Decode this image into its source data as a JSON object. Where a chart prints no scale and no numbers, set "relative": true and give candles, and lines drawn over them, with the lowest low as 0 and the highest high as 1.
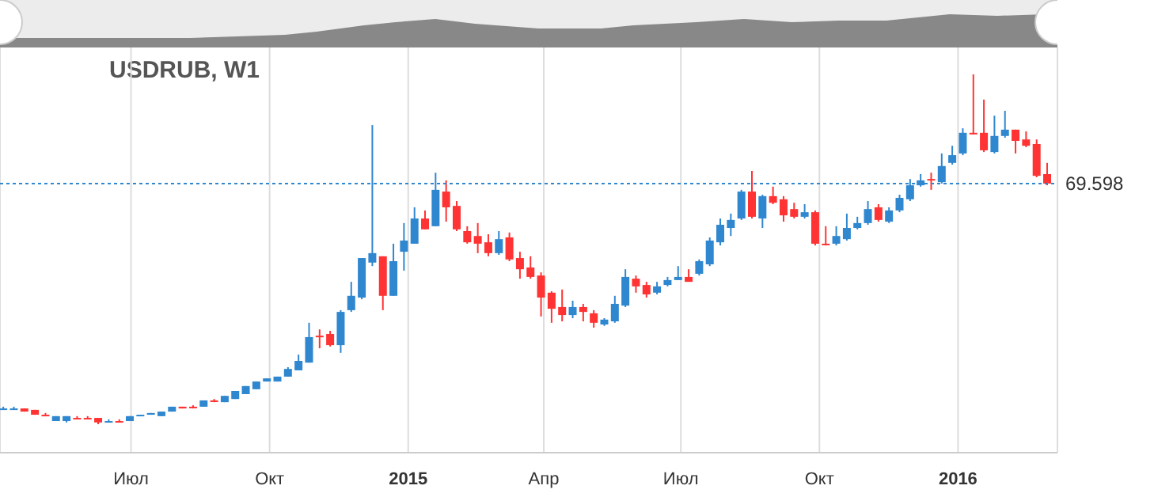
{
  "chart_data": {
    "type": "candlestick",
    "title": "USDRUB, W1",
    "relative": true,
    "grid": "x",
    "x": [
      "2014-04-07",
      "2014-04-14",
      "2014-04-21",
      "2014-04-28",
      "2014-05-05",
      "2014-05-12",
      "2014-05-19",
      "2014-05-26",
      "2014-06-02",
      "2014-06-09",
      "2014-06-16",
      "2014-06-23",
      "2014-06-30",
      "2014-07-07",
      "2014-07-14",
      "2014-07-21",
      "2014-07-28",
      "2014-08-04",
      "2014-08-11",
      "2014-08-18",
      "2014-08-25",
      "2014-09-01",
      "2014-09-08",
      "2014-09-15",
      "2014-09-22",
      "2014-09-29",
      "2014-10-06",
      "2014-10-13",
      "2014-10-20",
      "2014-10-27",
      "2014-11-03",
      "2014-11-10",
      "2014-11-17",
      "2014-11-24",
      "2014-12-01",
      "2014-12-08",
      "2014-12-15",
      "2014-12-22",
      "2014-12-29",
      "2015-01-05",
      "2015-01-12",
      "2015-01-19",
      "2015-01-26",
      "2015-02-02",
      "2015-02-09",
      "2015-02-16",
      "2015-02-23",
      "2015-03-02",
      "2015-03-09",
      "2015-03-16",
      "2015-03-23",
      "2015-03-30",
      "2015-04-06",
      "2015-04-13",
      "2015-04-20",
      "2015-04-27",
      "2015-05-04",
      "2015-05-11",
      "2015-05-18",
      "2015-05-25",
      "2015-06-01",
      "2015-06-08",
      "2015-06-15",
      "2015-06-22",
      "2015-06-29",
      "2015-07-06",
      "2015-07-13",
      "2015-07-20",
      "2015-07-27",
      "2015-08-03",
      "2015-08-10",
      "2015-08-17",
      "2015-08-24",
      "2015-08-31",
      "2015-09-07",
      "2015-09-14",
      "2015-09-21",
      "2015-09-28",
      "2015-10-05",
      "2015-10-12",
      "2015-10-19",
      "2015-10-26",
      "2015-11-02",
      "2015-11-09",
      "2015-11-16",
      "2015-11-23",
      "2015-11-30",
      "2015-12-07",
      "2015-12-14",
      "2015-12-21",
      "2015-12-28",
      "2016-01-04",
      "2016-01-11",
      "2016-01-18",
      "2016-01-25",
      "2016-02-01",
      "2016-02-08",
      "2016-02-15",
      "2016-02-22",
      "2016-02-29"
    ],
    "ohlc": [
      [
        0.045,
        0.05,
        0.041,
        0.045
      ],
      [
        0.045,
        0.05,
        0.041,
        0.045
      ],
      [
        0.045,
        0.045,
        0.036,
        0.036
      ],
      [
        0.041,
        0.041,
        0.027,
        0.027
      ],
      [
        0.027,
        0.032,
        0.023,
        0.027
      ],
      [
        0.009,
        0.023,
        0.009,
        0.023
      ],
      [
        0.009,
        0.023,
        0.005,
        0.023
      ],
      [
        0.018,
        0.023,
        0.014,
        0.018
      ],
      [
        0.018,
        0.023,
        0.014,
        0.018
      ],
      [
        0.018,
        0.018,
        0,
        0.005
      ],
      [
        0.009,
        0.014,
        0.005,
        0.009
      ],
      [
        0.009,
        0.014,
        0.005,
        0.009
      ],
      [
        0.009,
        0.023,
        0.009,
        0.023
      ],
      [
        0.023,
        0.027,
        0.023,
        0.027
      ],
      [
        0.027,
        0.032,
        0.027,
        0.032
      ],
      [
        0.023,
        0.036,
        0.023,
        0.036
      ],
      [
        0.036,
        0.05,
        0.036,
        0.05
      ],
      [
        0.05,
        0.05,
        0.045,
        0.045
      ],
      [
        0.05,
        0.054,
        0.045,
        0.05
      ],
      [
        0.05,
        0.068,
        0.05,
        0.068
      ],
      [
        0.068,
        0.072,
        0.063,
        0.068
      ],
      [
        0.063,
        0.081,
        0.063,
        0.081
      ],
      [
        0.072,
        0.095,
        0.072,
        0.095
      ],
      [
        0.086,
        0.109,
        0.086,
        0.109
      ],
      [
        0.1,
        0.122,
        0.1,
        0.122
      ],
      [
        0.122,
        0.131,
        0.122,
        0.131
      ],
      [
        0.122,
        0.136,
        0.122,
        0.136
      ],
      [
        0.136,
        0.163,
        0.136,
        0.158
      ],
      [
        0.154,
        0.199,
        0.154,
        0.181
      ],
      [
        0.176,
        0.29,
        0.176,
        0.249
      ],
      [
        0.253,
        0.271,
        0.217,
        0.249
      ],
      [
        0.258,
        0.267,
        0.222,
        0.226
      ],
      [
        0.226,
        0.326,
        0.204,
        0.321
      ],
      [
        0.326,
        0.407,
        0.321,
        0.367
      ],
      [
        0.362,
        0.475,
        0.357,
        0.475
      ],
      [
        0.462,
        0.855,
        0.452,
        0.489
      ],
      [
        0.48,
        0.48,
        0.326,
        0.367
      ],
      [
        0.367,
        0.516,
        0.367,
        0.466
      ],
      [
        0.493,
        0.575,
        0.439,
        0.525
      ],
      [
        0.516,
        0.62,
        0.516,
        0.588
      ],
      [
        0.588,
        0.611,
        0.557,
        0.557
      ],
      [
        0.566,
        0.719,
        0.566,
        0.67
      ],
      [
        0.665,
        0.697,
        0.579,
        0.62
      ],
      [
        0.624,
        0.638,
        0.552,
        0.557
      ],
      [
        0.552,
        0.566,
        0.516,
        0.52
      ],
      [
        0.538,
        0.575,
        0.489,
        0.516
      ],
      [
        0.52,
        0.543,
        0.48,
        0.489
      ],
      [
        0.489,
        0.552,
        0.484,
        0.529
      ],
      [
        0.534,
        0.548,
        0.466,
        0.471
      ],
      [
        0.475,
        0.493,
        0.416,
        0.443
      ],
      [
        0.448,
        0.48,
        0.416,
        0.421
      ],
      [
        0.425,
        0.434,
        0.308,
        0.362
      ],
      [
        0.376,
        0.38,
        0.29,
        0.33
      ],
      [
        0.335,
        0.385,
        0.294,
        0.312
      ],
      [
        0.312,
        0.353,
        0.303,
        0.335
      ],
      [
        0.335,
        0.344,
        0.294,
        0.321
      ],
      [
        0.317,
        0.326,
        0.276,
        0.29
      ],
      [
        0.285,
        0.303,
        0.281,
        0.299
      ],
      [
        0.294,
        0.367,
        0.29,
        0.344
      ],
      [
        0.339,
        0.443,
        0.335,
        0.421
      ],
      [
        0.416,
        0.425,
        0.376,
        0.394
      ],
      [
        0.398,
        0.407,
        0.362,
        0.371
      ],
      [
        0.376,
        0.407,
        0.371,
        0.394
      ],
      [
        0.398,
        0.421,
        0.394,
        0.412
      ],
      [
        0.412,
        0.452,
        0.412,
        0.421
      ],
      [
        0.421,
        0.443,
        0.407,
        0.407
      ],
      [
        0.43,
        0.471,
        0.425,
        0.466
      ],
      [
        0.457,
        0.534,
        0.452,
        0.525
      ],
      [
        0.52,
        0.588,
        0.511,
        0.57
      ],
      [
        0.561,
        0.602,
        0.538,
        0.584
      ],
      [
        0.588,
        0.67,
        0.584,
        0.665
      ],
      [
        0.665,
        0.724,
        0.588,
        0.593
      ],
      [
        0.588,
        0.656,
        0.561,
        0.652
      ],
      [
        0.652,
        0.679,
        0.629,
        0.633
      ],
      [
        0.643,
        0.652,
        0.579,
        0.597
      ],
      [
        0.615,
        0.633,
        0.588,
        0.593
      ],
      [
        0.593,
        0.629,
        0.588,
        0.606
      ],
      [
        0.606,
        0.611,
        0.511,
        0.516
      ],
      [
        0.516,
        0.566,
        0.511,
        0.516
      ],
      [
        0.516,
        0.566,
        0.511,
        0.538
      ],
      [
        0.529,
        0.602,
        0.525,
        0.561
      ],
      [
        0.561,
        0.593,
        0.557,
        0.575
      ],
      [
        0.575,
        0.638,
        0.57,
        0.615
      ],
      [
        0.62,
        0.629,
        0.579,
        0.584
      ],
      [
        0.579,
        0.62,
        0.575,
        0.611
      ],
      [
        0.611,
        0.656,
        0.606,
        0.647
      ],
      [
        0.643,
        0.701,
        0.638,
        0.683
      ],
      [
        0.683,
        0.715,
        0.679,
        0.697
      ],
      [
        0.701,
        0.719,
        0.67,
        0.701
      ],
      [
        0.692,
        0.774,
        0.688,
        0.738
      ],
      [
        0.747,
        0.796,
        0.742,
        0.769
      ],
      [
        0.774,
        0.846,
        0.769,
        0.833
      ],
      [
        0.833,
        1,
        0.828,
        0.833
      ],
      [
        0.833,
        0.928,
        0.778,
        0.783
      ],
      [
        0.778,
        0.882,
        0.774,
        0.824
      ],
      [
        0.824,
        0.896,
        0.819,
        0.842
      ],
      [
        0.842,
        0.842,
        0.774,
        0.81
      ],
      [
        0.814,
        0.837,
        0.792,
        0.796
      ],
      [
        0.801,
        0.814,
        0.706,
        0.71
      ],
      [
        0.715,
        0.747,
        0.683,
        0.688
      ]
    ],
    "colors": [
      "#2f87cf",
      "#2f87cf",
      "#ff3333",
      "#ff3333",
      "#ff3333",
      "#2f87cf",
      "#2f87cf",
      "#ff3333",
      "#ff3333",
      "#ff3333",
      "#2f87cf",
      "#ff3333",
      "#2f87cf",
      "#2f87cf",
      "#2f87cf",
      "#2f87cf",
      "#2f87cf",
      "#ff3333",
      "#ff3333",
      "#2f87cf",
      "#ff3333",
      "#2f87cf",
      "#2f87cf",
      "#2f87cf",
      "#2f87cf",
      "#2f87cf",
      "#2f87cf",
      "#2f87cf",
      "#2f87cf",
      "#2f87cf",
      "#ff3333",
      "#ff3333",
      "#2f87cf",
      "#2f87cf",
      "#2f87cf",
      "#2f87cf",
      "#ff3333",
      "#2f87cf",
      "#2f87cf",
      "#2f87cf",
      "#ff3333",
      "#2f87cf",
      "#ff3333",
      "#ff3333",
      "#ff3333",
      "#ff3333",
      "#ff3333",
      "#2f87cf",
      "#ff3333",
      "#ff3333",
      "#ff3333",
      "#ff3333",
      "#ff3333",
      "#ff3333",
      "#2f87cf",
      "#ff3333",
      "#ff3333",
      "#2f87cf",
      "#2f87cf",
      "#2f87cf",
      "#ff3333",
      "#ff3333",
      "#2f87cf",
      "#2f87cf",
      "#2f87cf",
      "#ff3333",
      "#2f87cf",
      "#2f87cf",
      "#2f87cf",
      "#2f87cf",
      "#2f87cf",
      "#ff3333",
      "#2f87cf",
      "#ff3333",
      "#ff3333",
      "#ff3333",
      "#2f87cf",
      "#ff3333",
      "#ff3333",
      "#2f87cf",
      "#2f87cf",
      "#2f87cf",
      "#2f87cf",
      "#ff3333",
      "#2f87cf",
      "#2f87cf",
      "#2f87cf",
      "#2f87cf",
      "#ff3333",
      "#2f87cf",
      "#2f87cf",
      "#2f87cf",
      "#ff3333",
      "#ff3333",
      "#2f87cf",
      "#2f87cf",
      "#ff3333",
      "#ff3333",
      "#ff3333",
      "#ff3333"
    ],
    "xlim": [
      "2014-04-05",
      "2016-03-07"
    ],
    "xticks": [
      {
        "value": "2014-07-01",
        "label": "Июл"
      },
      {
        "value": "2014-10-01",
        "label": "Окт"
      },
      {
        "value": "2015-01-01",
        "label": "2015"
      },
      {
        "value": "2015-04-01",
        "label": "Апр"
      },
      {
        "value": "2015-07-01",
        "label": "Июл"
      },
      {
        "value": "2015-10-01",
        "label": "Окт"
      },
      {
        "value": "2016-01-01",
        "label": "2016"
      }
    ],
    "ref_lines": [
      {
        "axis": "y",
        "value": 0.688,
        "color": "#2f87cf",
        "line_style": "dotted"
      }
    ],
    "annotations": [
      "69.598"
    ]
  }
}
